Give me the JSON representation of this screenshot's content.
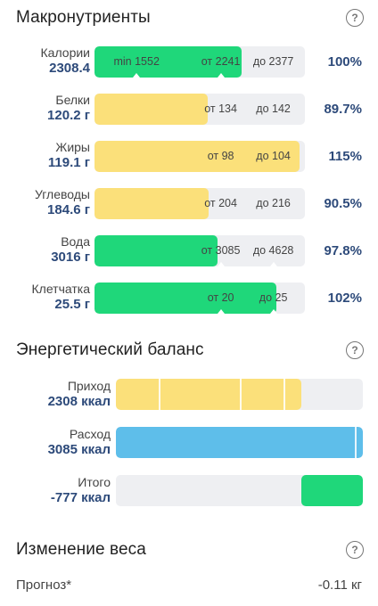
{
  "macros_section": {
    "title": "Макронутриенты",
    "help_glyph": "?"
  },
  "macros": [
    {
      "name": "Калории",
      "value": "2308.4",
      "percent": "100%",
      "color": "#1fd77a",
      "fill_pct": 70,
      "marks": [
        {
          "text": "min 1552",
          "pos_pct": 20
        },
        {
          "text": "от 2241",
          "pos_pct": 60
        },
        {
          "text": "до 2377",
          "pos_pct": 85
        }
      ],
      "ticks_pct": [
        20,
        60
      ]
    },
    {
      "name": "Белки",
      "value": "120.2 г",
      "percent": "89.7%",
      "color": "#fbe07a",
      "fill_pct": 53.8,
      "marks": [
        {
          "text": "от 134",
          "pos_pct": 60
        },
        {
          "text": "до 142",
          "pos_pct": 85
        }
      ],
      "ticks_pct": []
    },
    {
      "name": "Жиры",
      "value": "119.1 г",
      "percent": "115%",
      "color": "#fbe07a",
      "fill_pct": 97.5,
      "marks": [
        {
          "text": "от 98",
          "pos_pct": 60
        },
        {
          "text": "до 104",
          "pos_pct": 85
        }
      ],
      "ticks_pct": []
    },
    {
      "name": "Углеводы",
      "value": "184.6 г",
      "percent": "90.5%",
      "color": "#fbe07a",
      "fill_pct": 54.2,
      "marks": [
        {
          "text": "от 204",
          "pos_pct": 60
        },
        {
          "text": "до 216",
          "pos_pct": 85
        }
      ],
      "ticks_pct": []
    },
    {
      "name": "Вода",
      "value": "3016 г",
      "percent": "97.8%",
      "color": "#1fd77a",
      "fill_pct": 58.5,
      "marks": [
        {
          "text": "от 3085",
          "pos_pct": 60
        },
        {
          "text": "до 4628",
          "pos_pct": 85
        }
      ],
      "ticks_pct": [
        60,
        85
      ]
    },
    {
      "name": "Клетчатка",
      "value": "25.5 г",
      "percent": "102%",
      "color": "#1fd77a",
      "fill_pct": 86.5,
      "marks": [
        {
          "text": "от 20",
          "pos_pct": 60
        },
        {
          "text": "до 25",
          "pos_pct": 85
        }
      ],
      "ticks_pct": [
        60,
        85
      ]
    }
  ],
  "balance_section": {
    "title": "Энергетический баланс",
    "help_glyph": "?"
  },
  "balance": [
    {
      "name": "Приход",
      "value": "2308 ккал",
      "color": "#fbe07a",
      "fill_pct": 75
    },
    {
      "name": "Расход",
      "value": "3085 ккал",
      "color": "#5ebeea",
      "fill_pct": 100
    },
    {
      "name": "Итого",
      "value": "-777 ккал",
      "color": "#1fd77a",
      "fill_pct": 25
    }
  ],
  "weight_section": {
    "title": "Изменение веса",
    "help_glyph": "?",
    "forecast_label": "Прогноз*",
    "forecast_value": "-0.11 кг"
  }
}
